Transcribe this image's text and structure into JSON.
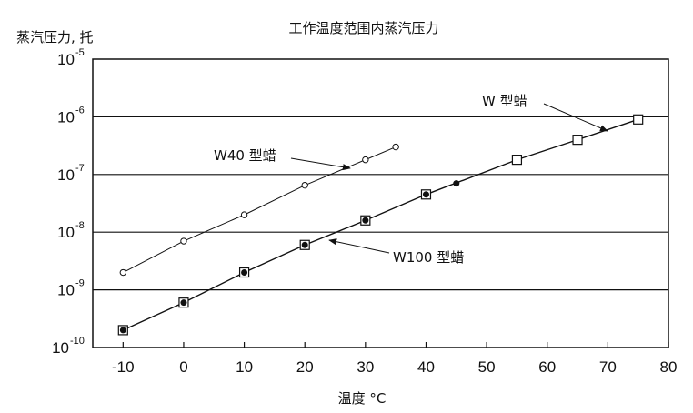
{
  "chart_data": {
    "type": "scatter",
    "title": "工作温度范围内蒸汽压力",
    "ylabel": "蒸汽压力, 托",
    "xlabel": "温度 °C",
    "yscale": "log",
    "xlim": [
      -15,
      80
    ],
    "ylim": [
      1e-10,
      1e-05
    ],
    "x_ticks": [
      "-10",
      "0",
      "10",
      "20",
      "30",
      "40",
      "50",
      "60",
      "70",
      "80"
    ],
    "y_ticks": [
      {
        "base": "10",
        "exp": "-5"
      },
      {
        "base": "10",
        "exp": "-6"
      },
      {
        "base": "10",
        "exp": "-7"
      },
      {
        "base": "10",
        "exp": "-8"
      },
      {
        "base": "10",
        "exp": "-9"
      },
      {
        "base": "10",
        "exp": "-10"
      }
    ],
    "grid": "horizontal",
    "series": [
      {
        "name": "W40 型蜡",
        "color": "#111111",
        "marker": "open-circle",
        "x": [
          -10,
          0,
          10,
          20,
          30,
          35
        ],
        "y": [
          2e-09,
          7e-09,
          2e-08,
          6.5e-08,
          1.8e-07,
          3e-07
        ]
      },
      {
        "name": "W100 型蜡",
        "color": "#111111",
        "marker": "filled-circle",
        "x": [
          -10,
          0,
          10,
          20,
          30,
          40,
          45
        ],
        "y": [
          2e-10,
          6e-10,
          2e-09,
          6e-09,
          1.6e-08,
          4.5e-08,
          7e-08
        ]
      },
      {
        "name": "W 型蜡",
        "color": "#111111",
        "marker": "open-square",
        "x": [
          -10,
          0,
          10,
          20,
          30,
          40,
          55,
          65,
          75
        ],
        "y": [
          2e-10,
          6e-10,
          2e-09,
          6e-09,
          1.6e-08,
          4.5e-08,
          1.8e-07,
          4e-07,
          9e-07
        ]
      }
    ]
  }
}
